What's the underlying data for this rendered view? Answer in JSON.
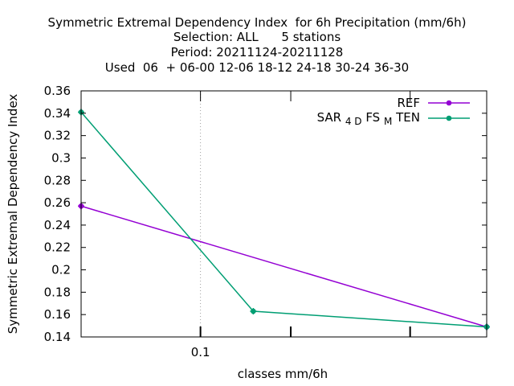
{
  "chart_data": {
    "type": "line",
    "title_lines": [
      "Symmetric Extremal Dependency Index  for 6h Precipitation (mm/6h)",
      "Selection: ALL      5 stations",
      "Period: 20211124-20211128",
      "Used  06  + 06-00 12-06 18-12 24-18 30-24 36-30"
    ],
    "xlabel": "classes mm/6h",
    "ylabel": "Symmetric Extremal Dependency Index",
    "x_scale": "log",
    "xlim": [
      0.04,
      0.9
    ],
    "ylim": [
      0.14,
      0.36
    ],
    "y_ticks": [
      0.14,
      0.16,
      0.18,
      0.2,
      0.22,
      0.24,
      0.26,
      0.28,
      0.3,
      0.32,
      0.34,
      0.36
    ],
    "y_tick_labels": [
      "0.14",
      "0.16",
      "0.18",
      "0.2",
      "0.22",
      "0.24",
      "0.26",
      "0.28",
      "0.3",
      "0.32",
      "0.34",
      "0.36"
    ],
    "x_ticks": [
      0.1,
      0.2,
      0.5
    ],
    "x_tick_labels": [
      "0.1",
      "",
      ""
    ],
    "grid": true,
    "legend_position": "top-right",
    "series": [
      {
        "name": "REF",
        "color": "#9400d3",
        "x": [
          0.04,
          0.9
        ],
        "y": [
          0.257,
          0.149
        ]
      },
      {
        "name": "SAR_4D FS_M TEN",
        "color": "#009e73",
        "x": [
          0.04,
          0.15,
          0.9
        ],
        "y": [
          0.341,
          0.163,
          0.149
        ]
      }
    ],
    "legend": [
      {
        "text": "REF",
        "sub": []
      },
      {
        "text": "SAR",
        "sub": [
          "4 D",
          "M"
        ],
        "parts": [
          "SAR",
          "4 D",
          "FS",
          "M",
          "TEN"
        ]
      }
    ]
  }
}
